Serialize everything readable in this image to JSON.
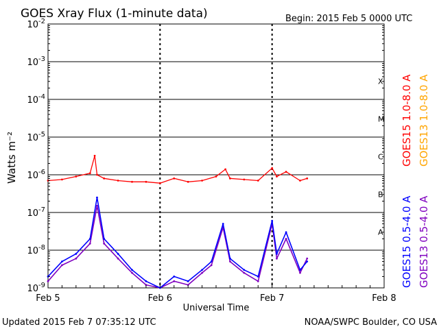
{
  "header": {
    "title": "GOES Xray Flux (1-minute data)",
    "begin": "Begin:  2015 Feb 5 0000 UTC"
  },
  "footer": {
    "updated": "Updated 2015 Feb  7 07:35:12 UTC",
    "credit": "NOAA/SWPC Boulder, CO USA"
  },
  "colors": {
    "goes15_long": "#ff0000",
    "goes13_long": "#ffa500",
    "goes15_short": "#0000ff",
    "goes13_short": "#7f00bf"
  },
  "chart_data": {
    "type": "line",
    "title": "GOES Xray Flux (1-minute data)",
    "xlabel": "Universal Time",
    "ylabel": "Watts m⁻²",
    "y_scale": "log",
    "ylim": [
      1e-09,
      0.01
    ],
    "xlim": [
      "2015-02-05 00:00",
      "2015-02-08 00:00"
    ],
    "x_tick_labels": [
      "Feb 5",
      "Feb 6",
      "Feb 7",
      "Feb 8"
    ],
    "y_ticks": [
      {
        "base": "10",
        "exp": "-9",
        "value": 1e-09
      },
      {
        "base": "10",
        "exp": "-8",
        "value": 1e-08
      },
      {
        "base": "10",
        "exp": "-7",
        "value": 1e-07
      },
      {
        "base": "10",
        "exp": "-6",
        "value": 1e-06
      },
      {
        "base": "10",
        "exp": "-5",
        "value": 1e-05
      },
      {
        "base": "10",
        "exp": "-4",
        "value": 0.0001
      },
      {
        "base": "10",
        "exp": "-3",
        "value": 0.001
      },
      {
        "base": "10",
        "exp": "-2",
        "value": 0.01
      }
    ],
    "flare_classes": [
      "A",
      "B",
      "C",
      "M",
      "X"
    ],
    "flare_class_levels": [
      1e-08,
      1e-07,
      1e-06,
      1e-05,
      0.0001
    ],
    "grid": true,
    "legend_position": "right (vertical)",
    "series": [
      {
        "name": "GOES15 1.0-8.0 A",
        "color": "#ff0000",
        "x": [
          "2015-02-05 00:00",
          "2015-02-05 03:00",
          "2015-02-05 06:00",
          "2015-02-05 09:00",
          "2015-02-05 10:00",
          "2015-02-05 10:30",
          "2015-02-05 12:00",
          "2015-02-05 15:00",
          "2015-02-05 18:00",
          "2015-02-05 21:00",
          "2015-02-06 00:00",
          "2015-02-06 03:00",
          "2015-02-06 06:00",
          "2015-02-06 09:00",
          "2015-02-06 12:00",
          "2015-02-06 14:00",
          "2015-02-06 15:00",
          "2015-02-06 18:00",
          "2015-02-06 21:00",
          "2015-02-07 00:00",
          "2015-02-07 01:00",
          "2015-02-07 03:00",
          "2015-02-07 06:00",
          "2015-02-07 07:30"
        ],
        "values": [
          7e-07,
          7.5e-07,
          9e-07,
          1.1e-06,
          3.2e-06,
          1e-06,
          8e-07,
          7e-07,
          6.5e-07,
          6.5e-07,
          6e-07,
          8e-07,
          6.5e-07,
          7e-07,
          9e-07,
          1.4e-06,
          8e-07,
          7.5e-07,
          7e-07,
          1.5e-06,
          9e-07,
          1.2e-06,
          7e-07,
          8e-07
        ]
      },
      {
        "name": "GOES13 1.0-8.0 A",
        "color": "#ffa500",
        "x": [],
        "values": []
      },
      {
        "name": "GOES15 0.5-4.0 A",
        "color": "#0000ff",
        "x": [
          "2015-02-05 00:00",
          "2015-02-05 03:00",
          "2015-02-05 06:00",
          "2015-02-05 09:00",
          "2015-02-05 10:30",
          "2015-02-05 12:00",
          "2015-02-05 15:00",
          "2015-02-05 18:00",
          "2015-02-05 21:00",
          "2015-02-06 00:00",
          "2015-02-06 03:00",
          "2015-02-06 06:00",
          "2015-02-06 09:00",
          "2015-02-06 11:00",
          "2015-02-06 13:30",
          "2015-02-06 15:00",
          "2015-02-06 18:00",
          "2015-02-06 21:00",
          "2015-02-07 00:00",
          "2015-02-07 01:00",
          "2015-02-07 03:00",
          "2015-02-07 06:00",
          "2015-02-07 07:30"
        ],
        "values": [
          2e-09,
          5e-09,
          8e-09,
          2e-08,
          2.5e-07,
          2e-08,
          8e-09,
          3e-09,
          1.5e-09,
          1e-09,
          2e-09,
          1.5e-09,
          3e-09,
          5e-09,
          5e-08,
          6e-09,
          3e-09,
          2e-09,
          6e-08,
          8e-09,
          3e-08,
          3e-09,
          5e-09
        ]
      },
      {
        "name": "GOES13 0.5-4.0 A",
        "color": "#7f00bf",
        "x": [
          "2015-02-05 00:00",
          "2015-02-05 03:00",
          "2015-02-05 06:00",
          "2015-02-05 09:00",
          "2015-02-05 10:30",
          "2015-02-05 12:00",
          "2015-02-05 15:00",
          "2015-02-05 18:00",
          "2015-02-05 21:00",
          "2015-02-06 00:00",
          "2015-02-06 03:00",
          "2015-02-06 06:00",
          "2015-02-06 09:00",
          "2015-02-06 11:00",
          "2015-02-06 13:30",
          "2015-02-06 15:00",
          "2015-02-06 18:00",
          "2015-02-06 21:00",
          "2015-02-07 00:00",
          "2015-02-07 01:00",
          "2015-02-07 03:00",
          "2015-02-07 06:00",
          "2015-02-07 07:30"
        ],
        "values": [
          1.5e-09,
          4e-09,
          6e-09,
          1.5e-08,
          1.5e-07,
          1.5e-08,
          6e-09,
          2.5e-09,
          1.2e-09,
          1e-09,
          1.5e-09,
          1.2e-09,
          2.5e-09,
          4e-09,
          4e-08,
          5e-09,
          2.5e-09,
          1.5e-09,
          5e-08,
          6e-09,
          2e-08,
          2.5e-09,
          6e-09
        ]
      }
    ]
  }
}
